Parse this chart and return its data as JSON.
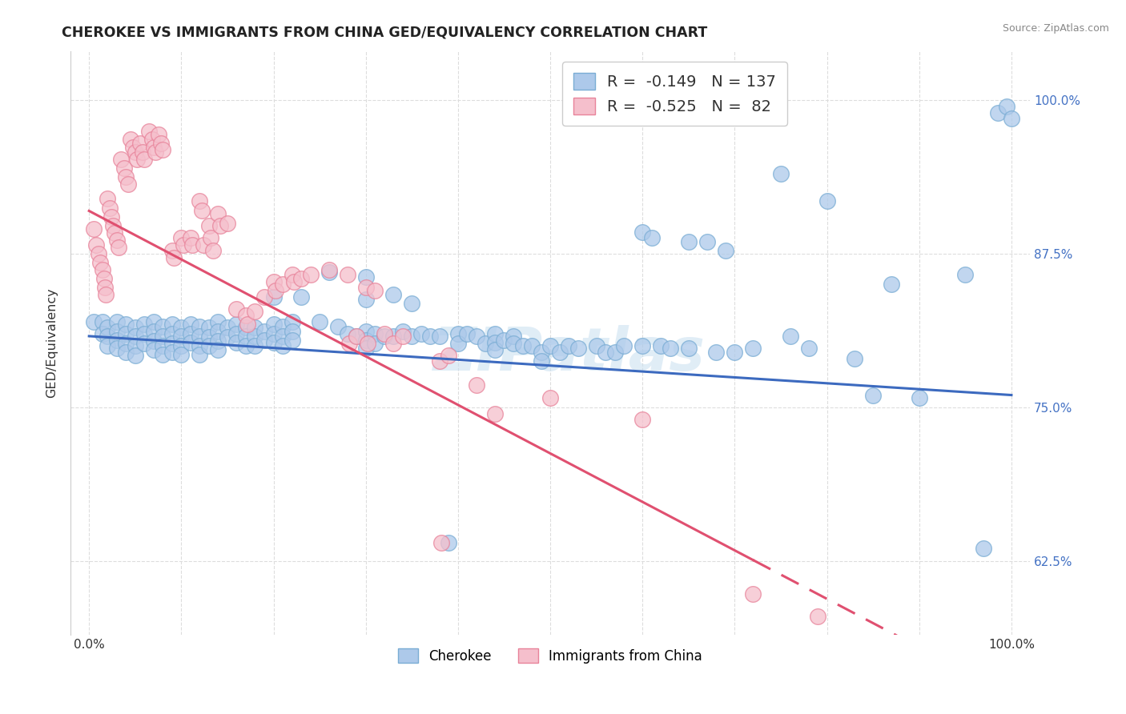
{
  "title": "CHEROKEE VS IMMIGRANTS FROM CHINA GED/EQUIVALENCY CORRELATION CHART",
  "source": "Source: ZipAtlas.com",
  "ylabel": "GED/Equivalency",
  "ytick_labels": [
    "62.5%",
    "75.0%",
    "87.5%",
    "100.0%"
  ],
  "ytick_values": [
    0.625,
    0.75,
    0.875,
    1.0
  ],
  "xlim": [
    -0.02,
    1.02
  ],
  "ylim": [
    0.565,
    1.04
  ],
  "watermark": "ZIPatlas",
  "blue_R": -0.149,
  "blue_N": 137,
  "blue_intercept": 0.808,
  "blue_slope": -0.048,
  "pink_R": -0.525,
  "pink_N": 82,
  "pink_intercept": 0.91,
  "pink_slope": -0.395,
  "blue_scatter": [
    [
      0.005,
      0.82
    ],
    [
      0.015,
      0.82
    ],
    [
      0.015,
      0.81
    ],
    [
      0.02,
      0.815
    ],
    [
      0.02,
      0.808
    ],
    [
      0.02,
      0.8
    ],
    [
      0.03,
      0.82
    ],
    [
      0.03,
      0.812
    ],
    [
      0.03,
      0.805
    ],
    [
      0.03,
      0.798
    ],
    [
      0.04,
      0.818
    ],
    [
      0.04,
      0.81
    ],
    [
      0.04,
      0.802
    ],
    [
      0.04,
      0.795
    ],
    [
      0.05,
      0.815
    ],
    [
      0.05,
      0.808
    ],
    [
      0.05,
      0.8
    ],
    [
      0.05,
      0.792
    ],
    [
      0.06,
      0.818
    ],
    [
      0.06,
      0.81
    ],
    [
      0.06,
      0.802
    ],
    [
      0.07,
      0.82
    ],
    [
      0.07,
      0.812
    ],
    [
      0.07,
      0.804
    ],
    [
      0.07,
      0.797
    ],
    [
      0.08,
      0.816
    ],
    [
      0.08,
      0.808
    ],
    [
      0.08,
      0.8
    ],
    [
      0.08,
      0.793
    ],
    [
      0.09,
      0.818
    ],
    [
      0.09,
      0.81
    ],
    [
      0.09,
      0.802
    ],
    [
      0.09,
      0.795
    ],
    [
      0.1,
      0.815
    ],
    [
      0.1,
      0.808
    ],
    [
      0.1,
      0.8
    ],
    [
      0.1,
      0.793
    ],
    [
      0.11,
      0.818
    ],
    [
      0.11,
      0.81
    ],
    [
      0.11,
      0.803
    ],
    [
      0.12,
      0.816
    ],
    [
      0.12,
      0.808
    ],
    [
      0.12,
      0.8
    ],
    [
      0.12,
      0.793
    ],
    [
      0.13,
      0.815
    ],
    [
      0.13,
      0.807
    ],
    [
      0.13,
      0.8
    ],
    [
      0.14,
      0.82
    ],
    [
      0.14,
      0.812
    ],
    [
      0.14,
      0.804
    ],
    [
      0.14,
      0.797
    ],
    [
      0.15,
      0.815
    ],
    [
      0.15,
      0.807
    ],
    [
      0.16,
      0.818
    ],
    [
      0.16,
      0.81
    ],
    [
      0.16,
      0.803
    ],
    [
      0.17,
      0.815
    ],
    [
      0.17,
      0.808
    ],
    [
      0.17,
      0.8
    ],
    [
      0.18,
      0.815
    ],
    [
      0.18,
      0.808
    ],
    [
      0.18,
      0.8
    ],
    [
      0.19,
      0.812
    ],
    [
      0.19,
      0.805
    ],
    [
      0.2,
      0.84
    ],
    [
      0.2,
      0.818
    ],
    [
      0.2,
      0.81
    ],
    [
      0.2,
      0.803
    ],
    [
      0.21,
      0.816
    ],
    [
      0.21,
      0.808
    ],
    [
      0.21,
      0.8
    ],
    [
      0.22,
      0.82
    ],
    [
      0.22,
      0.812
    ],
    [
      0.22,
      0.805
    ],
    [
      0.23,
      0.84
    ],
    [
      0.25,
      0.82
    ],
    [
      0.26,
      0.86
    ],
    [
      0.27,
      0.816
    ],
    [
      0.28,
      0.81
    ],
    [
      0.29,
      0.808
    ],
    [
      0.3,
      0.856
    ],
    [
      0.3,
      0.838
    ],
    [
      0.3,
      0.812
    ],
    [
      0.3,
      0.805
    ],
    [
      0.3,
      0.798
    ],
    [
      0.31,
      0.81
    ],
    [
      0.31,
      0.802
    ],
    [
      0.32,
      0.808
    ],
    [
      0.33,
      0.842
    ],
    [
      0.33,
      0.808
    ],
    [
      0.34,
      0.812
    ],
    [
      0.35,
      0.835
    ],
    [
      0.35,
      0.808
    ],
    [
      0.36,
      0.81
    ],
    [
      0.37,
      0.808
    ],
    [
      0.38,
      0.808
    ],
    [
      0.39,
      0.64
    ],
    [
      0.4,
      0.81
    ],
    [
      0.4,
      0.802
    ],
    [
      0.41,
      0.81
    ],
    [
      0.42,
      0.808
    ],
    [
      0.43,
      0.802
    ],
    [
      0.44,
      0.81
    ],
    [
      0.44,
      0.803
    ],
    [
      0.44,
      0.797
    ],
    [
      0.45,
      0.805
    ],
    [
      0.46,
      0.808
    ],
    [
      0.46,
      0.802
    ],
    [
      0.47,
      0.8
    ],
    [
      0.48,
      0.8
    ],
    [
      0.49,
      0.795
    ],
    [
      0.49,
      0.788
    ],
    [
      0.5,
      0.8
    ],
    [
      0.51,
      0.795
    ],
    [
      0.52,
      0.8
    ],
    [
      0.53,
      0.798
    ],
    [
      0.55,
      0.8
    ],
    [
      0.56,
      0.795
    ],
    [
      0.57,
      0.795
    ],
    [
      0.58,
      0.8
    ],
    [
      0.6,
      0.893
    ],
    [
      0.6,
      0.8
    ],
    [
      0.61,
      0.888
    ],
    [
      0.62,
      0.8
    ],
    [
      0.63,
      0.798
    ],
    [
      0.65,
      0.885
    ],
    [
      0.65,
      0.798
    ],
    [
      0.67,
      0.885
    ],
    [
      0.68,
      0.795
    ],
    [
      0.69,
      0.878
    ],
    [
      0.7,
      0.795
    ],
    [
      0.72,
      0.798
    ],
    [
      0.75,
      0.94
    ],
    [
      0.76,
      0.808
    ],
    [
      0.78,
      0.798
    ],
    [
      0.8,
      0.918
    ],
    [
      0.83,
      0.79
    ],
    [
      0.85,
      0.76
    ],
    [
      0.87,
      0.85
    ],
    [
      0.9,
      0.758
    ],
    [
      0.95,
      0.858
    ],
    [
      0.97,
      0.635
    ],
    [
      0.985,
      0.99
    ],
    [
      0.995,
      0.995
    ],
    [
      1.0,
      0.985
    ]
  ],
  "pink_scatter": [
    [
      0.005,
      0.895
    ],
    [
      0.008,
      0.882
    ],
    [
      0.01,
      0.875
    ],
    [
      0.012,
      0.868
    ],
    [
      0.015,
      0.862
    ],
    [
      0.016,
      0.855
    ],
    [
      0.017,
      0.848
    ],
    [
      0.018,
      0.842
    ],
    [
      0.02,
      0.92
    ],
    [
      0.022,
      0.912
    ],
    [
      0.024,
      0.905
    ],
    [
      0.026,
      0.898
    ],
    [
      0.028,
      0.892
    ],
    [
      0.03,
      0.886
    ],
    [
      0.032,
      0.88
    ],
    [
      0.035,
      0.952
    ],
    [
      0.038,
      0.945
    ],
    [
      0.04,
      0.938
    ],
    [
      0.042,
      0.932
    ],
    [
      0.045,
      0.968
    ],
    [
      0.048,
      0.962
    ],
    [
      0.05,
      0.958
    ],
    [
      0.052,
      0.952
    ],
    [
      0.055,
      0.965
    ],
    [
      0.058,
      0.958
    ],
    [
      0.06,
      0.952
    ],
    [
      0.065,
      0.975
    ],
    [
      0.068,
      0.968
    ],
    [
      0.07,
      0.962
    ],
    [
      0.072,
      0.958
    ],
    [
      0.075,
      0.972
    ],
    [
      0.078,
      0.965
    ],
    [
      0.08,
      0.96
    ],
    [
      0.09,
      0.878
    ],
    [
      0.092,
      0.872
    ],
    [
      0.1,
      0.888
    ],
    [
      0.102,
      0.882
    ],
    [
      0.11,
      0.888
    ],
    [
      0.112,
      0.882
    ],
    [
      0.12,
      0.918
    ],
    [
      0.122,
      0.91
    ],
    [
      0.124,
      0.882
    ],
    [
      0.13,
      0.898
    ],
    [
      0.132,
      0.888
    ],
    [
      0.134,
      0.878
    ],
    [
      0.14,
      0.908
    ],
    [
      0.142,
      0.898
    ],
    [
      0.15,
      0.9
    ],
    [
      0.16,
      0.83
    ],
    [
      0.17,
      0.825
    ],
    [
      0.172,
      0.818
    ],
    [
      0.18,
      0.828
    ],
    [
      0.19,
      0.84
    ],
    [
      0.2,
      0.852
    ],
    [
      0.202,
      0.845
    ],
    [
      0.21,
      0.85
    ],
    [
      0.22,
      0.858
    ],
    [
      0.222,
      0.852
    ],
    [
      0.23,
      0.855
    ],
    [
      0.24,
      0.858
    ],
    [
      0.26,
      0.862
    ],
    [
      0.28,
      0.858
    ],
    [
      0.282,
      0.802
    ],
    [
      0.29,
      0.808
    ],
    [
      0.3,
      0.848
    ],
    [
      0.302,
      0.802
    ],
    [
      0.31,
      0.845
    ],
    [
      0.32,
      0.81
    ],
    [
      0.33,
      0.802
    ],
    [
      0.34,
      0.808
    ],
    [
      0.38,
      0.788
    ],
    [
      0.382,
      0.64
    ],
    [
      0.39,
      0.792
    ],
    [
      0.42,
      0.768
    ],
    [
      0.44,
      0.745
    ],
    [
      0.5,
      0.758
    ],
    [
      0.6,
      0.74
    ],
    [
      0.72,
      0.598
    ],
    [
      0.79,
      0.58
    ]
  ],
  "blue_color": "#adc9ea",
  "pink_color": "#f5bfcc",
  "blue_edge_color": "#7aadd4",
  "pink_edge_color": "#e8839a",
  "blue_line_color": "#3c6abf",
  "pink_line_color": "#e05070",
  "background_color": "#ffffff",
  "grid_color": "#dddddd"
}
